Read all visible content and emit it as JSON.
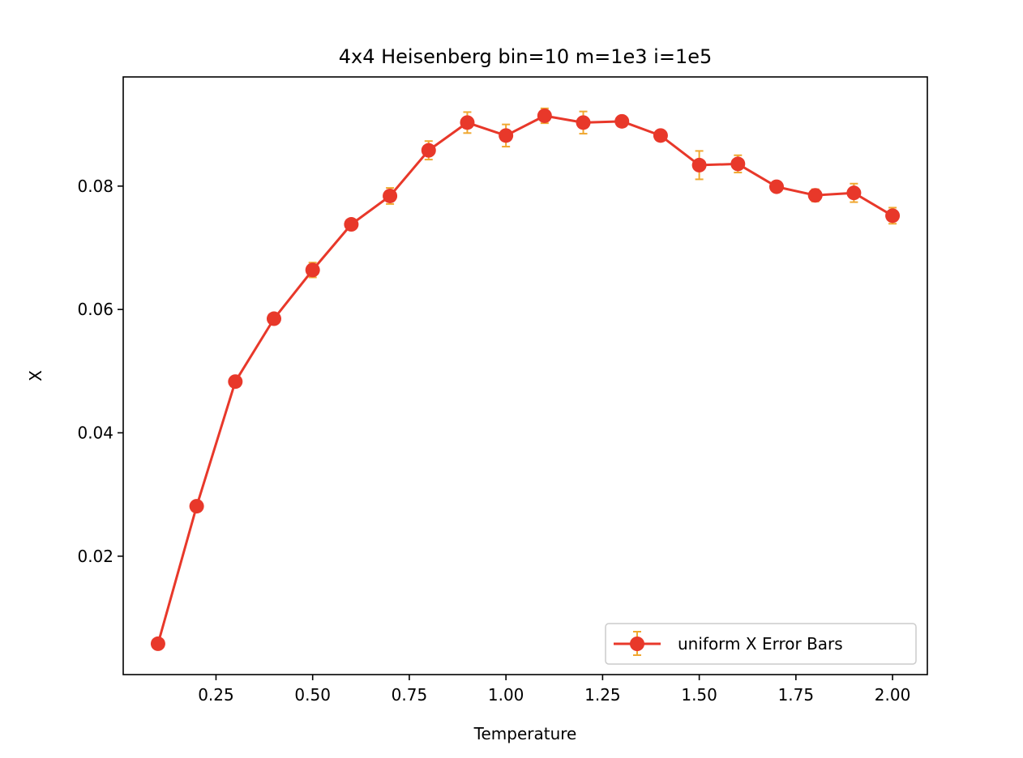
{
  "chart_data": {
    "type": "line",
    "title": "4x4 Heisenberg bin=10 m=1e3 i=1e5",
    "xlabel": "Temperature",
    "ylabel": "X",
    "xlim": [
      0.01,
      2.09
    ],
    "ylim": [
      0.0008,
      0.0977
    ],
    "xticks": [
      0.25,
      0.5,
      0.75,
      1.0,
      1.25,
      1.5,
      1.75,
      2.0
    ],
    "xtick_labels": [
      "0.25",
      "0.50",
      "0.75",
      "1.00",
      "1.25",
      "1.50",
      "1.75",
      "2.00"
    ],
    "yticks": [
      0.02,
      0.04,
      0.06,
      0.08
    ],
    "ytick_labels": [
      "0.02",
      "0.04",
      "0.06",
      "0.08"
    ],
    "grid": false,
    "legend_position": "lower right",
    "series": [
      {
        "name": "uniform X Error Bars",
        "color": "#e8382a",
        "error_color": "#f0a830",
        "x": [
          0.1,
          0.2,
          0.3,
          0.4,
          0.5,
          0.6,
          0.7,
          0.8,
          0.9,
          1.0,
          1.1,
          1.2,
          1.3,
          1.4,
          1.5,
          1.6,
          1.7,
          1.8,
          1.9,
          2.0
        ],
        "y": [
          0.0058,
          0.0281,
          0.0483,
          0.0585,
          0.0664,
          0.0738,
          0.0784,
          0.0858,
          0.0903,
          0.0882,
          0.0914,
          0.0903,
          0.0905,
          0.0882,
          0.0834,
          0.0836,
          0.0799,
          0.0785,
          0.0789,
          0.0752
        ],
        "yerr": [
          0.0008,
          0.0003,
          0.0005,
          0.0004,
          0.0012,
          0.0005,
          0.0013,
          0.0015,
          0.0017,
          0.0018,
          0.0012,
          0.0018,
          0.0005,
          0.0006,
          0.0023,
          0.0014,
          0.0007,
          0.001,
          0.0015,
          0.0013
        ]
      }
    ]
  }
}
